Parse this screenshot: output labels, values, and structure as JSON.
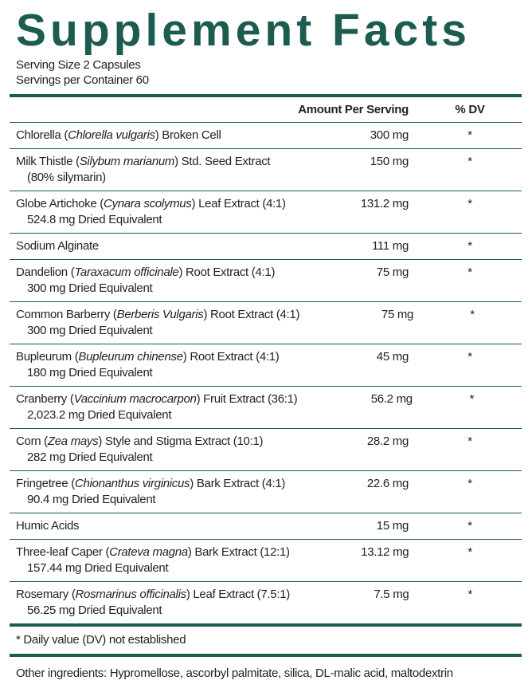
{
  "title": "Supplement Facts",
  "serving_size": "Serving Size 2 Capsules",
  "servings_per_container": "Servings per Container 60",
  "header": {
    "amount": "Amount Per Serving",
    "dv": "% DV"
  },
  "rows": [
    {
      "name": "Chlorella (",
      "latin": "Chlorella vulgaris",
      "rest": ") Broken Cell",
      "amount": "300 mg",
      "dv": "*"
    },
    {
      "name": "Milk Thistle (",
      "latin": "Silybum marianum",
      "rest": ") Std. Seed Extract",
      "detail": "(80% silymarin)",
      "amount": "150 mg",
      "dv": "*"
    },
    {
      "name": "Globe Artichoke (",
      "latin": "Cynara scolymus",
      "rest": ") Leaf Extract (4:1)",
      "detail": "524.8 mg Dried Equivalent",
      "amount": "131.2 mg",
      "dv": "*"
    },
    {
      "name": "Sodium Alginate",
      "amount": "111 mg",
      "dv": "*"
    },
    {
      "name": "Dandelion (",
      "latin": "Taraxacum officinale",
      "rest": ") Root Extract (4:1)",
      "detail": "300 mg Dried Equivalent",
      "amount": "75 mg",
      "dv": "*"
    },
    {
      "name": "Common Barberry (",
      "latin": "Berberis Vulgaris",
      "rest": ") Root Extract (4:1)",
      "detail": "300 mg Dried Equivalent",
      "amount": "75 mg",
      "dv": "*"
    },
    {
      "name": "Bupleurum (",
      "latin": "Bupleurum chinense",
      "rest": ") Root Extract (4:1)",
      "detail": "180 mg Dried Equivalent",
      "amount": "45 mg",
      "dv": "*"
    },
    {
      "name": "Cranberry (",
      "latin": "Vaccinium macrocarpon",
      "rest": ") Fruit Extract (36:1)",
      "detail": "2,023.2 mg Dried Equivalent",
      "amount": "56.2 mg",
      "dv": "*"
    },
    {
      "name": "Corn (",
      "latin": "Zea mays",
      "rest": ") Style and Stigma Extract (10:1)",
      "detail": "282 mg Dried Equivalent",
      "amount": "28.2 mg",
      "dv": "*"
    },
    {
      "name": "Fringetree (",
      "latin": "Chionanthus virginicus",
      "rest": ") Bark Extract (4:1)",
      "detail": "90.4 mg Dried Equivalent",
      "amount": "22.6 mg",
      "dv": "*"
    },
    {
      "name": "Humic Acids",
      "amount": "15 mg",
      "dv": "*"
    },
    {
      "name": "Three-leaf Caper (",
      "latin": "Crateva magna",
      "rest": ") Bark Extract (12:1)",
      "detail": "157.44 mg Dried Equivalent",
      "amount": "13.12 mg",
      "dv": "*"
    },
    {
      "name": "Rosemary (",
      "latin": "Rosmarinus officinalis",
      "rest": ") Leaf Extract (7.5:1)",
      "detail": "56.25 mg Dried Equivalent",
      "amount": "7.5 mg",
      "dv": "*"
    }
  ],
  "footnote": "* Daily value (DV) not established",
  "other_ingredients": "Other ingredients: Hypromellose, ascorbyl palmitate, silica, DL-malic acid, maltodextrin"
}
